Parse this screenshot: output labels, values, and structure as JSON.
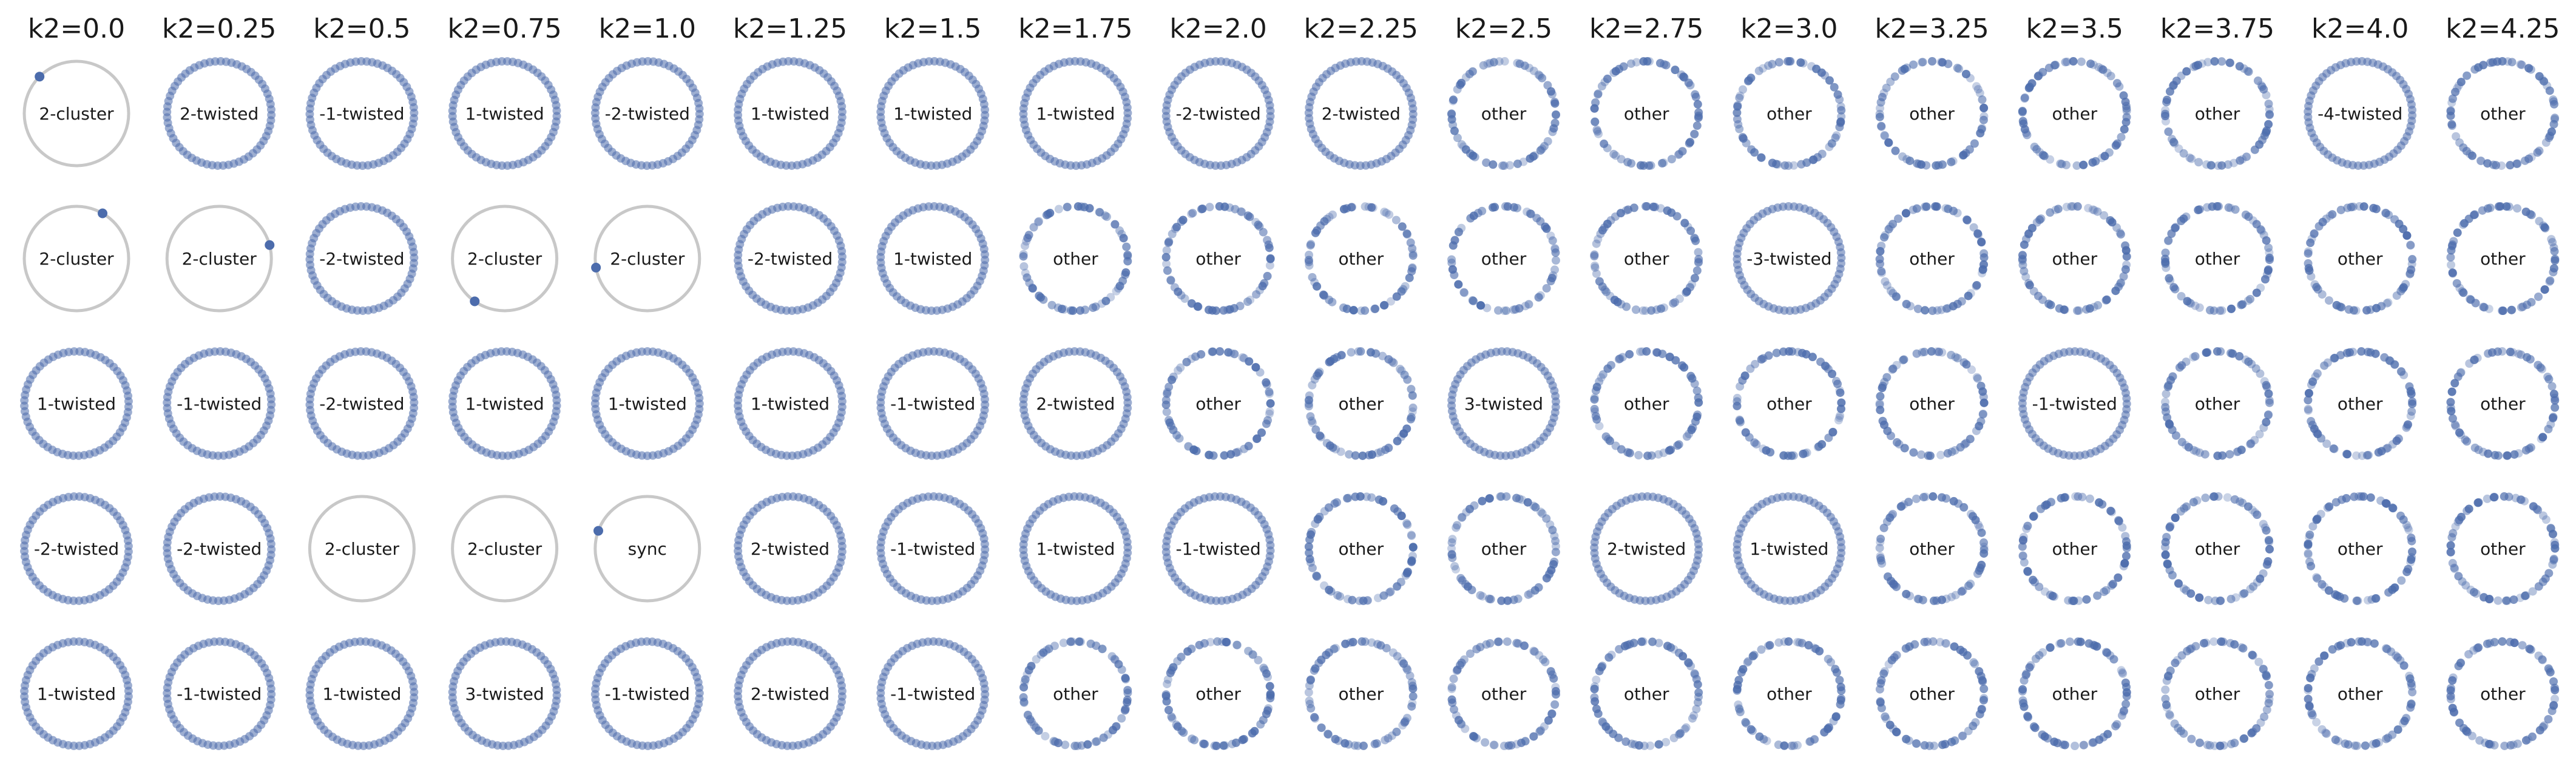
{
  "colors": {
    "oscillator": "#4c6cac",
    "ring": "#c8c8c8",
    "label": "#1a1a1a",
    "background": "#ffffff"
  },
  "chart_data": {
    "type": "scatter",
    "description_of_panels": "grid of oscillator-ring snapshots; columns = coupling strength k2, rows = independent trials",
    "columns": [
      "k2=0.0",
      "k2=0.25",
      "k2=0.5",
      "k2=0.75",
      "k2=1.0",
      "k2=1.25",
      "k2=1.5",
      "k2=1.75",
      "k2=2.0",
      "k2=2.25",
      "k2=2.5",
      "k2=2.75",
      "k2=3.0",
      "k2=3.25",
      "k2=3.5",
      "k2=3.75",
      "k2=4.0",
      "k2=4.25"
    ],
    "labels": [
      [
        "2-cluster",
        "2-twisted",
        "-1-twisted",
        "1-twisted",
        "-2-twisted",
        "1-twisted",
        "1-twisted",
        "1-twisted",
        "-2-twisted",
        "2-twisted",
        "other",
        "other",
        "other",
        "other",
        "other",
        "other",
        "-4-twisted",
        "other"
      ],
      [
        "2-cluster",
        "2-cluster",
        "-2-twisted",
        "2-cluster",
        "2-cluster",
        "-2-twisted",
        "1-twisted",
        "other",
        "other",
        "other",
        "other",
        "other",
        "-3-twisted",
        "other",
        "other",
        "other",
        "other",
        "other"
      ],
      [
        "1-twisted",
        "-1-twisted",
        "-2-twisted",
        "1-twisted",
        "1-twisted",
        "1-twisted",
        "-1-twisted",
        "2-twisted",
        "other",
        "other",
        "3-twisted",
        "other",
        "other",
        "other",
        "-1-twisted",
        "other",
        "other",
        "other"
      ],
      [
        "-2-twisted",
        "-2-twisted",
        "2-cluster",
        "2-cluster",
        "sync",
        "2-twisted",
        "-1-twisted",
        "1-twisted",
        "-1-twisted",
        "other",
        "other",
        "2-twisted",
        "1-twisted",
        "other",
        "other",
        "other",
        "other",
        "other"
      ],
      [
        "1-twisted",
        "-1-twisted",
        "1-twisted",
        "3-twisted",
        "-1-twisted",
        "2-twisted",
        "-1-twisted",
        "other",
        "other",
        "other",
        "other",
        "other",
        "other",
        "other",
        "other",
        "other",
        "other",
        "other"
      ]
    ],
    "cluster_angles_deg": [
      [
        "135",
        "",
        "",
        "",
        "",
        "",
        "",
        "",
        "",
        "",
        "",
        "",
        "",
        "",
        "",
        "",
        "",
        ""
      ],
      [
        "60",
        "15",
        "",
        "235",
        "190",
        "",
        "",
        "",
        "",
        "",
        "",
        "",
        "",
        "",
        "",
        "",
        "",
        ""
      ],
      [
        "",
        "",
        "",
        "",
        "",
        "",
        "",
        "",
        "",
        "",
        "",
        "",
        "",
        "",
        "",
        "",
        "",
        ""
      ],
      [
        "",
        "",
        "",
        "",
        "160",
        "",
        "",
        "",
        "",
        "",
        "",
        "",
        "",
        "",
        "",
        "",
        "",
        ""
      ],
      [
        "",
        "",
        "",
        "",
        "",
        "",
        "",
        "",
        "",
        "",
        "",
        "",
        "",
        "",
        "",
        "",
        "",
        ""
      ]
    ],
    "n_oscillators": 60
  }
}
